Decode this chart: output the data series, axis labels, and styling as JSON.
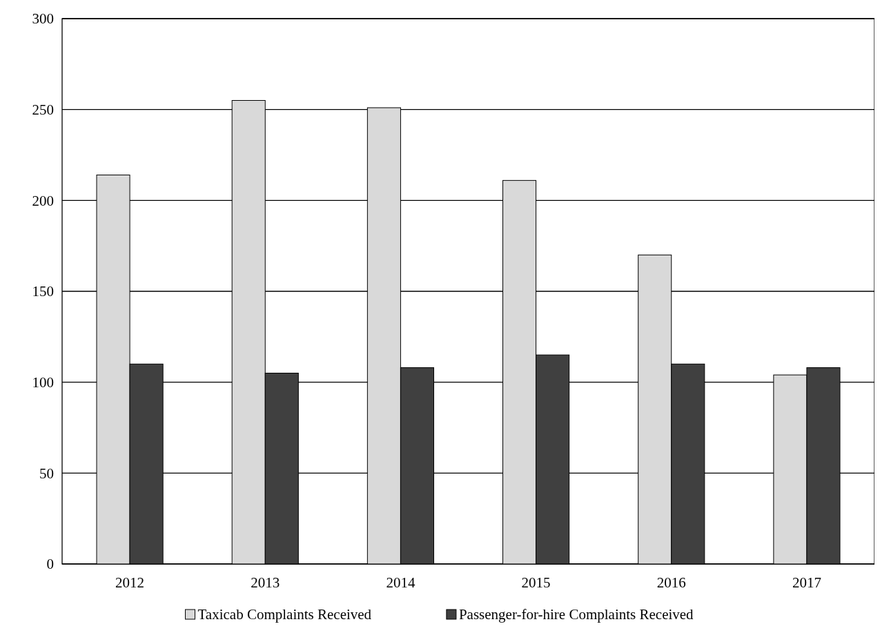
{
  "chart_data": {
    "type": "bar",
    "categories": [
      "2012",
      "2013",
      "2014",
      "2015",
      "2016",
      "2017"
    ],
    "series": [
      {
        "name": "Taxicab Complaints Received",
        "color": "#d9d9d9",
        "values": [
          214,
          255,
          251,
          211,
          170,
          104
        ]
      },
      {
        "name": "Passenger-for-hire Complaints Received",
        "color": "#404040",
        "values": [
          110,
          105,
          108,
          115,
          110,
          108
        ]
      }
    ],
    "ylim": [
      0,
      300
    ],
    "yticks": [
      0,
      50,
      100,
      150,
      200,
      250,
      300
    ],
    "grid": "y",
    "legend": "bottom"
  }
}
